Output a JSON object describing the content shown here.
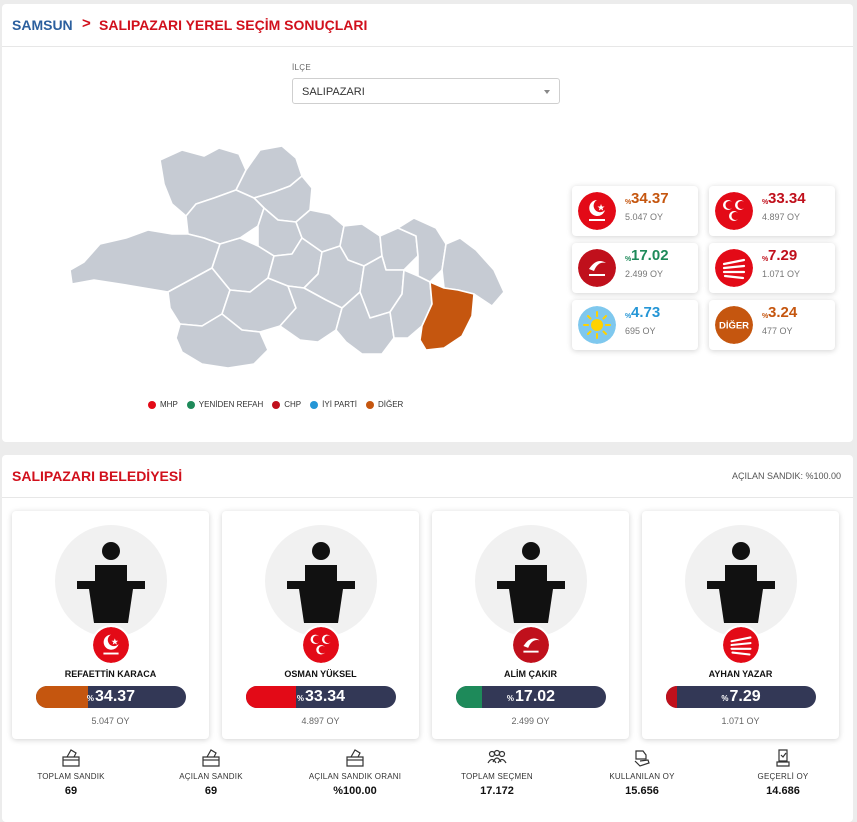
{
  "breadcrumb": {
    "province": "SAMSUN",
    "separator": ">",
    "page": "SALIPAZARI YEREL SEÇİM SONUÇLARI"
  },
  "district_select": {
    "label": "İLÇE",
    "value": "SALIPAZARI"
  },
  "legend": [
    {
      "label": "MHP",
      "color": "#e30a17"
    },
    {
      "label": "YENİDEN REFAH",
      "color": "#1e8a5a"
    },
    {
      "label": "CHP",
      "color": "#c0101c"
    },
    {
      "label": "İYİ PARTİ",
      "color": "#2596d6"
    },
    {
      "label": "DİĞER",
      "color": "#c5560f"
    }
  ],
  "party_results": [
    {
      "party": "BBP",
      "pct": "34.37",
      "votes": "5.047 OY",
      "color": "#c5560f",
      "logo": "bbp-logo-icon"
    },
    {
      "party": "MHP",
      "pct": "33.34",
      "votes": "4.897 OY",
      "color": "#c0101c",
      "logo": "mhp-logo-icon"
    },
    {
      "party": "YENİDEN REFAH",
      "pct": "17.02",
      "votes": "2.499 OY",
      "color": "#1e8a5a",
      "logo": "yrp-logo-icon"
    },
    {
      "party": "CHP",
      "pct": "7.29",
      "votes": "1.071 OY",
      "color": "#c0101c",
      "logo": "chp-logo-icon"
    },
    {
      "party": "İYİ PARTİ",
      "pct": "4.73",
      "votes": "695 OY",
      "color": "#2596d6",
      "logo": "iyi-logo-icon"
    },
    {
      "party": "DİĞER",
      "pct": "3.24",
      "votes": "477 OY",
      "color": "#c5560f",
      "logo": "diger-logo-icon",
      "logo_text": "DİĞER"
    }
  ],
  "belediye": {
    "title": "SALIPAZARI BELEDİYESİ",
    "opened_boxes": "AÇILAN SANDIK: %100.00"
  },
  "candidates": [
    {
      "name": "REFAETTİN KARACA",
      "pct": "34.37",
      "votes": "5.047 OY",
      "fill": 0.3437,
      "color": "#c5560f",
      "logo": "bbp-logo-icon"
    },
    {
      "name": "OSMAN YÜKSEL",
      "pct": "33.34",
      "votes": "4.897 OY",
      "fill": 0.3334,
      "color": "#e30a17",
      "logo": "mhp-logo-icon"
    },
    {
      "name": "ALİM ÇAKIR",
      "pct": "17.02",
      "votes": "2.499 OY",
      "fill": 0.1702,
      "color": "#1e8a5a",
      "logo": "yrp-logo-icon"
    },
    {
      "name": "AYHAN YAZAR",
      "pct": "7.29",
      "votes": "1.071 OY",
      "fill": 0.0729,
      "color": "#c0101c",
      "logo": "chp-logo-icon"
    }
  ],
  "percent_sign": "%",
  "stats": [
    {
      "label": "TOPLAM SANDIK",
      "value": "69",
      "icon": "ballot-box-icon"
    },
    {
      "label": "AÇILAN SANDIK",
      "value": "69",
      "icon": "ballot-box-icon"
    },
    {
      "label": "AÇILAN SANDIK ORANI",
      "value": "%100.00",
      "icon": "ballot-box-icon"
    },
    {
      "label": "TOPLAM SEÇMEN",
      "value": "17.172",
      "icon": "people-icon"
    },
    {
      "label": "KULLANILAN OY",
      "value": "15.656",
      "icon": "vote-hand-icon"
    },
    {
      "label": "GEÇERLİ OY",
      "value": "14.686",
      "icon": "valid-vote-icon"
    }
  ],
  "map": {
    "default_color": "#c6cbd3",
    "highlight_color": "#c5560f",
    "highlighted_district": "SALIPAZARI"
  }
}
